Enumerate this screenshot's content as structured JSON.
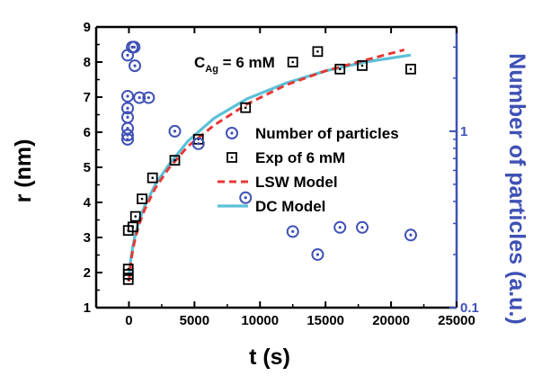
{
  "chart_data": {
    "type": "scatter",
    "xlabel": "t (s)",
    "ylabel": "r (nm)",
    "y2label": "Number of particles (a.u.)",
    "xlim": [
      -2500,
      25000
    ],
    "ylim": [
      1,
      9
    ],
    "y2lim": [
      0.1,
      3.9
    ],
    "y2scale": "log",
    "x_ticks": [
      0,
      5000,
      10000,
      15000,
      20000,
      25000
    ],
    "y_ticks": [
      1,
      2,
      3,
      4,
      5,
      6,
      7,
      8,
      9
    ],
    "y2_ticks": [
      0.1,
      1
    ],
    "grid": false,
    "legend_position": "center-right",
    "annotation": {
      "main": "C",
      "sub": "Ag",
      "rest": " = 6 mM"
    },
    "colors": {
      "axis_right": "#3f51b5",
      "number_particles": "#3f51b5",
      "exp": "#000000",
      "lsw": "#e53935",
      "dc": "#5bc0d8"
    },
    "series": [
      {
        "name": "Number of particles",
        "axis": "right",
        "marker": "circle-dot",
        "points": [
          [
            -100,
            0.9
          ],
          [
            -100,
            0.95
          ],
          [
            -100,
            1.04
          ],
          [
            -100,
            1.2
          ],
          [
            -100,
            1.35
          ],
          [
            -100,
            1.58
          ],
          [
            -100,
            2.7
          ],
          [
            250,
            3.0
          ],
          [
            400,
            3.0
          ],
          [
            450,
            2.35
          ],
          [
            800,
            1.55
          ],
          [
            1500,
            1.55
          ],
          [
            3500,
            1.0
          ],
          [
            5300,
            0.85
          ],
          [
            8900,
            0.42
          ],
          [
            12500,
            0.27
          ],
          [
            14400,
            0.2
          ],
          [
            16100,
            0.285
          ],
          [
            17800,
            0.285
          ],
          [
            21500,
            0.258
          ]
        ]
      },
      {
        "name": "Exp of 6 mM",
        "axis": "left",
        "marker": "square-dot",
        "points": [
          [
            -50,
            1.8
          ],
          [
            -50,
            1.95
          ],
          [
            -50,
            2.1
          ],
          [
            -50,
            3.2
          ],
          [
            300,
            3.3
          ],
          [
            500,
            3.6
          ],
          [
            1000,
            4.1
          ],
          [
            1800,
            4.7
          ],
          [
            3500,
            5.2
          ],
          [
            5300,
            5.8
          ],
          [
            8900,
            6.7
          ],
          [
            12500,
            8.0
          ],
          [
            14400,
            8.3
          ],
          [
            16100,
            7.8
          ],
          [
            17800,
            7.9
          ],
          [
            21500,
            7.8
          ]
        ]
      },
      {
        "name": "LSW Model",
        "axis": "left",
        "style": "dashed",
        "points": [
          [
            0,
            1.75
          ],
          [
            150,
            2.3
          ],
          [
            300,
            2.65
          ],
          [
            500,
            3.0
          ],
          [
            800,
            3.4
          ],
          [
            1200,
            3.8
          ],
          [
            2000,
            4.4
          ],
          [
            3000,
            4.95
          ],
          [
            4500,
            5.6
          ],
          [
            6500,
            6.2
          ],
          [
            9000,
            6.8
          ],
          [
            12000,
            7.35
          ],
          [
            15000,
            7.75
          ],
          [
            18000,
            8.05
          ],
          [
            21000,
            8.35
          ]
        ]
      },
      {
        "name": "DC Model",
        "axis": "left",
        "style": "solid",
        "points": [
          [
            0,
            1.9
          ],
          [
            150,
            2.4
          ],
          [
            300,
            2.75
          ],
          [
            500,
            3.1
          ],
          [
            800,
            3.5
          ],
          [
            1200,
            3.9
          ],
          [
            2000,
            4.5
          ],
          [
            3000,
            5.05
          ],
          [
            4500,
            5.75
          ],
          [
            6500,
            6.4
          ],
          [
            9000,
            6.95
          ],
          [
            12000,
            7.4
          ],
          [
            15000,
            7.75
          ],
          [
            18000,
            8.0
          ],
          [
            21500,
            8.2
          ]
        ]
      }
    ]
  }
}
